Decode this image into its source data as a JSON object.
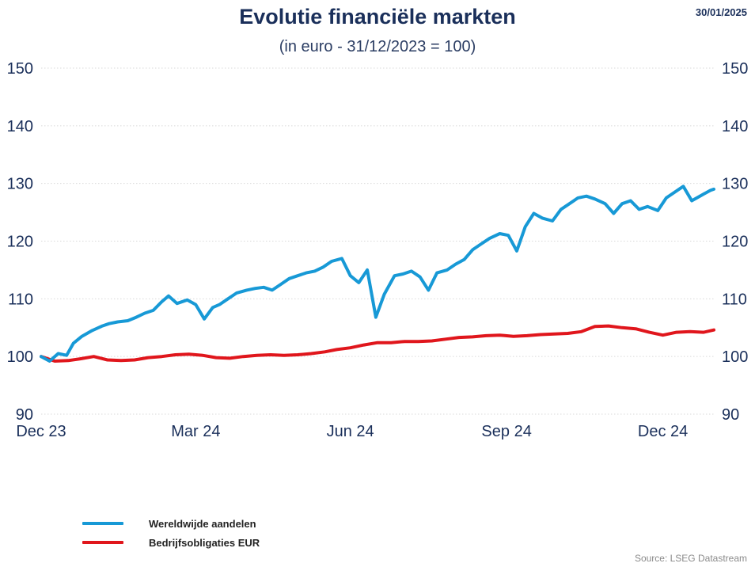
{
  "header": {
    "title": "Evolutie financiële markten",
    "subtitle": "(in euro - 31/12/2023 = 100)",
    "date": "30/01/2025"
  },
  "footer": {
    "source": "Source: LSEG Datastream"
  },
  "colors": {
    "equities": "#1799d6",
    "bonds": "#e0161c",
    "grid": "#d9d9d9",
    "axis_text": "#1a2f5a"
  },
  "chart_data": {
    "type": "line",
    "title": "Evolutie financiële markten",
    "subtitle": "(in euro - 31/12/2023 = 100)",
    "x_tick_labels": [
      "Dec 23",
      "Mar 24",
      "Jun 24",
      "Sep 24",
      "Dec 24"
    ],
    "x_ticks": [
      "2023-12-31",
      "2024-03-31",
      "2024-06-30",
      "2024-09-30",
      "2024-12-31"
    ],
    "x_range": [
      "2023-12-31",
      "2025-01-30"
    ],
    "y_ticks": [
      90,
      100,
      110,
      120,
      130,
      140,
      150
    ],
    "ylim": [
      90,
      150
    ],
    "grid": "horizontal dotted",
    "legend_position": "bottom-left",
    "series": [
      {
        "name": "Wereldwijde aandelen",
        "color": "#1799d6",
        "x": [
          "2023-12-31",
          "2024-01-05",
          "2024-01-10",
          "2024-01-15",
          "2024-01-19",
          "2024-01-24",
          "2024-01-30",
          "2024-02-05",
          "2024-02-09",
          "2024-02-14",
          "2024-02-20",
          "2024-02-25",
          "2024-03-01",
          "2024-03-06",
          "2024-03-11",
          "2024-03-15",
          "2024-03-20",
          "2024-03-26",
          "2024-03-31",
          "2024-04-05",
          "2024-04-10",
          "2024-04-14",
          "2024-04-19",
          "2024-04-24",
          "2024-04-30",
          "2024-05-05",
          "2024-05-10",
          "2024-05-15",
          "2024-05-20",
          "2024-05-25",
          "2024-05-30",
          "2024-06-04",
          "2024-06-09",
          "2024-06-14",
          "2024-06-19",
          "2024-06-25",
          "2024-06-30",
          "2024-07-05",
          "2024-07-10",
          "2024-07-15",
          "2024-07-20",
          "2024-07-26",
          "2024-07-31",
          "2024-08-05",
          "2024-08-10",
          "2024-08-15",
          "2024-08-20",
          "2024-08-26",
          "2024-08-31",
          "2024-09-05",
          "2024-09-10",
          "2024-09-15",
          "2024-09-20",
          "2024-09-26",
          "2024-10-01",
          "2024-10-06",
          "2024-10-11",
          "2024-10-16",
          "2024-10-21",
          "2024-10-27",
          "2024-11-01",
          "2024-11-06",
          "2024-11-11",
          "2024-11-16",
          "2024-11-21",
          "2024-11-27",
          "2024-12-02",
          "2024-12-07",
          "2024-12-12",
          "2024-12-17",
          "2024-12-22",
          "2024-12-28",
          "2025-01-02",
          "2025-01-07",
          "2025-01-12",
          "2025-01-17",
          "2025-01-23",
          "2025-01-28",
          "2025-01-30"
        ],
        "values": [
          100,
          99.2,
          100.5,
          100.2,
          102.3,
          103.5,
          104.5,
          105.3,
          105.7,
          106.0,
          106.2,
          106.8,
          107.5,
          108.0,
          109.5,
          110.5,
          109.2,
          109.8,
          109.0,
          106.5,
          108.5,
          109.0,
          110.0,
          111.0,
          111.5,
          111.8,
          112.0,
          111.5,
          112.5,
          113.5,
          114.0,
          114.5,
          114.8,
          115.5,
          116.5,
          117.0,
          114.0,
          112.8,
          115.0,
          106.8,
          110.8,
          114.0,
          114.3,
          114.8,
          113.8,
          111.5,
          114.5,
          115.0,
          116.0,
          116.8,
          118.5,
          119.5,
          120.5,
          121.3,
          121.0,
          118.3,
          122.5,
          124.8,
          124.0,
          123.5,
          125.5,
          126.5,
          127.5,
          127.8,
          127.3,
          126.5,
          124.8,
          126.5,
          127.0,
          125.5,
          126.0,
          125.3,
          127.5,
          128.5,
          129.5,
          127.0,
          128.0,
          128.8,
          129.0
        ]
      },
      {
        "name": "Bedrijfsobligaties EUR",
        "color": "#e0161c",
        "x": [
          "2023-12-31",
          "2024-01-08",
          "2024-01-16",
          "2024-01-23",
          "2024-01-31",
          "2024-02-08",
          "2024-02-16",
          "2024-02-24",
          "2024-03-03",
          "2024-03-11",
          "2024-03-19",
          "2024-03-27",
          "2024-04-04",
          "2024-04-12",
          "2024-04-20",
          "2024-04-28",
          "2024-05-06",
          "2024-05-14",
          "2024-05-22",
          "2024-05-30",
          "2024-06-07",
          "2024-06-15",
          "2024-06-22",
          "2024-06-30",
          "2024-07-08",
          "2024-07-16",
          "2024-07-24",
          "2024-08-01",
          "2024-08-09",
          "2024-08-17",
          "2024-08-25",
          "2024-09-02",
          "2024-09-10",
          "2024-09-18",
          "2024-09-26",
          "2024-10-04",
          "2024-10-12",
          "2024-10-20",
          "2024-10-28",
          "2024-11-05",
          "2024-11-13",
          "2024-11-21",
          "2024-11-29",
          "2024-12-07",
          "2024-12-15",
          "2024-12-23",
          "2024-12-31",
          "2025-01-08",
          "2025-01-16",
          "2025-01-24",
          "2025-01-30"
        ],
        "values": [
          100,
          99.2,
          99.3,
          99.6,
          100.0,
          99.4,
          99.3,
          99.4,
          99.8,
          100.0,
          100.3,
          100.4,
          100.2,
          99.8,
          99.7,
          100.0,
          100.2,
          100.3,
          100.2,
          100.3,
          100.5,
          100.8,
          101.2,
          101.5,
          102.0,
          102.4,
          102.4,
          102.6,
          102.6,
          102.7,
          103.0,
          103.3,
          103.4,
          103.6,
          103.7,
          103.5,
          103.6,
          103.8,
          103.9,
          104.0,
          104.3,
          105.2,
          105.3,
          105.0,
          104.8,
          104.2,
          103.7,
          104.2,
          104.3,
          104.2,
          104.6
        ]
      }
    ]
  }
}
